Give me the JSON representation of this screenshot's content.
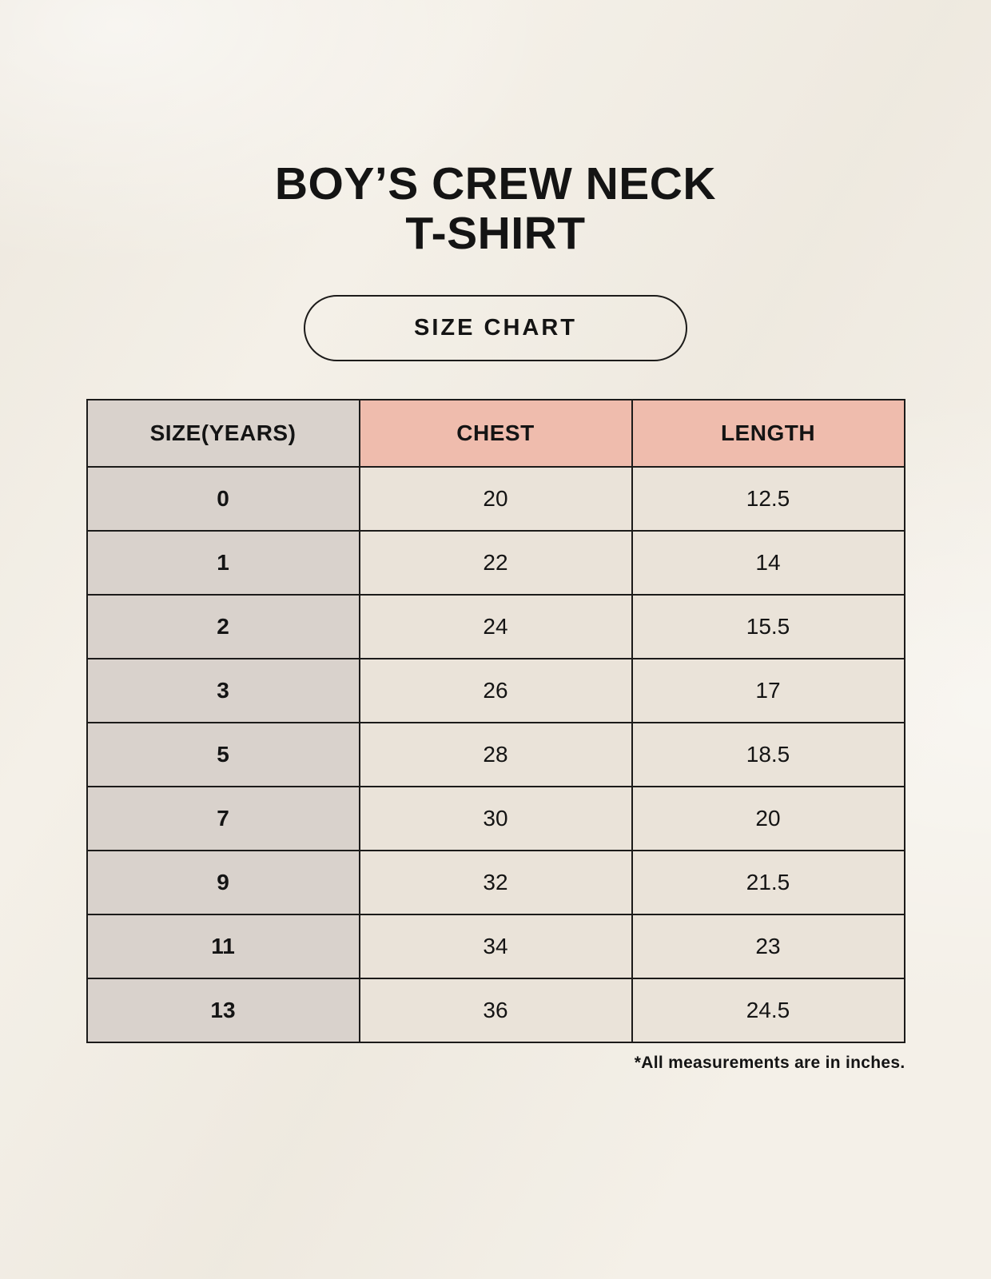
{
  "page": {
    "title_lines": [
      "BOY’S CREW NECK",
      "T-SHIRT"
    ],
    "badge_label": "SIZE CHART",
    "footnote": "*All measurements are in inches."
  },
  "table": {
    "columns": [
      "SIZE(YEARS)",
      "CHEST",
      "LENGTH"
    ],
    "rows": [
      [
        "0",
        "20",
        "12.5"
      ],
      [
        "1",
        "22",
        "14"
      ],
      [
        "2",
        "24",
        "15.5"
      ],
      [
        "3",
        "26",
        "17"
      ],
      [
        "5",
        "28",
        "18.5"
      ],
      [
        "7",
        "30",
        "20"
      ],
      [
        "9",
        "32",
        "21.5"
      ],
      [
        "11",
        "34",
        "23"
      ],
      [
        "13",
        "36",
        "24.5"
      ]
    ]
  },
  "colors": {
    "background": "#f4f0e8",
    "size_column_bg": "#d9d2cc",
    "header_bg": "#efbcad",
    "cell_bg": "#eae3d9",
    "border": "#1c1b1a",
    "text": "#141414"
  },
  "chart_data": {
    "type": "table",
    "title": "BOY’S CREW NECK T-SHIRT",
    "subtitle": "SIZE CHART",
    "columns": [
      "SIZE(YEARS)",
      "CHEST",
      "LENGTH"
    ],
    "rows": [
      [
        0,
        20,
        12.5
      ],
      [
        1,
        22,
        14
      ],
      [
        2,
        24,
        15.5
      ],
      [
        3,
        26,
        17
      ],
      [
        5,
        28,
        18.5
      ],
      [
        7,
        30,
        20
      ],
      [
        9,
        32,
        21.5
      ],
      [
        11,
        34,
        23
      ],
      [
        13,
        36,
        24.5
      ]
    ],
    "note": "*All measurements are in inches.",
    "units": "inches"
  }
}
